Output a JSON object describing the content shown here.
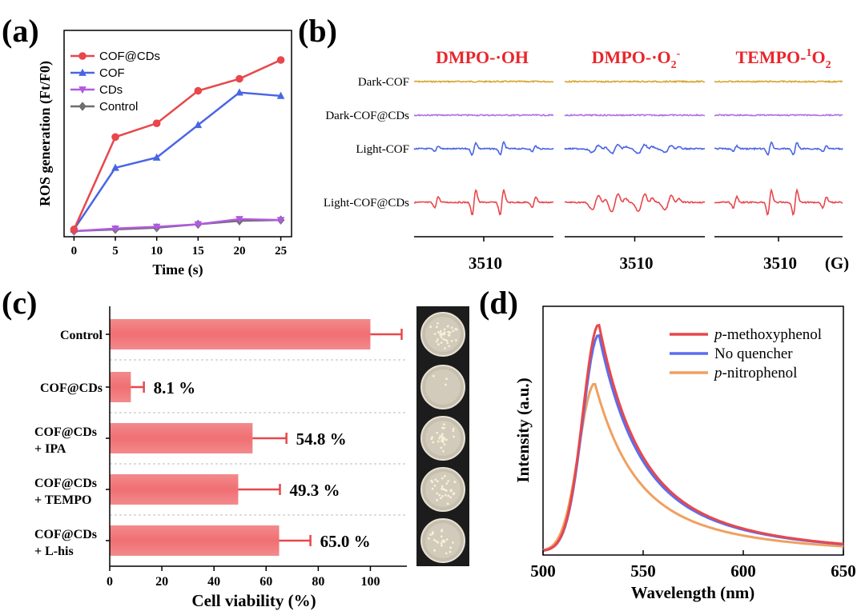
{
  "panel_labels": {
    "a": "(a)",
    "b": "(b)",
    "c": "(c)",
    "d": "(d)"
  },
  "chart_data": [
    {
      "panel": "a",
      "type": "line",
      "xlabel": "Time (s)",
      "ylabel": "ROS generation (Ft/F0)",
      "x": [
        0,
        5,
        10,
        15,
        20,
        25
      ],
      "xticks": [
        "0",
        "5",
        "10",
        "15",
        "20",
        "25"
      ],
      "xlim": [
        -1.2,
        26.3
      ],
      "ylim": [
        0,
        1
      ],
      "y_tick_labels_shown": false,
      "legend_position": "top-left",
      "series": [
        {
          "name": "COF@CDs",
          "marker": "circle",
          "color": "#e8474b",
          "values": [
            0.01,
            0.55,
            0.63,
            0.82,
            0.89,
            1.0
          ]
        },
        {
          "name": "COF",
          "marker": "triangle-up",
          "color": "#4a65e3",
          "values": [
            0.01,
            0.37,
            0.43,
            0.62,
            0.81,
            0.79
          ]
        },
        {
          "name": "CDs",
          "marker": "triangle-down",
          "color": "#b05ae0",
          "values": [
            0.0,
            0.015,
            0.025,
            0.04,
            0.07,
            0.065
          ]
        },
        {
          "name": "Control",
          "marker": "diamond",
          "color": "#6e6e6e",
          "values": [
            0.0,
            0.01,
            0.02,
            0.04,
            0.06,
            0.065
          ]
        }
      ]
    },
    {
      "panel": "b",
      "type": "line",
      "column_titles": [
        "DMPO-·OH",
        "DMPO-·O",
        "TEMPO-"
      ],
      "column_title_sup": [
        "",
        "-",
        "1"
      ],
      "column_title_sub": [
        "",
        "2",
        "2"
      ],
      "column_title_tail": [
        "",
        "",
        "O"
      ],
      "row_labels": [
        "Dark-COF",
        "Dark-COF@CDs",
        "Light-COF",
        "Light-COF@CDs"
      ],
      "row_colors": [
        "#d8a530",
        "#b070e0",
        "#4a65e3",
        "#e8474b"
      ],
      "x_tick_label": "3510",
      "x_unit": "(G)",
      "y_tick_labels_shown": false
    },
    {
      "panel": "c",
      "type": "bar",
      "orientation": "horizontal",
      "xlabel": "Cell viability (%)",
      "xlim": [
        0,
        114
      ],
      "xticks": [
        "0",
        "20",
        "40",
        "60",
        "80",
        "100"
      ],
      "bar_color": "#f06f73",
      "categories": [
        {
          "line1": "Control",
          "line2": ""
        },
        {
          "line1": "COF@CDs",
          "line2": ""
        },
        {
          "line1": "COF@CDs",
          "line2": "+ IPA"
        },
        {
          "line1": "COF@CDs",
          "line2": "+ TEMPO"
        },
        {
          "line1": "COF@CDs",
          "line2": "+ L-his"
        }
      ],
      "values": [
        100,
        8.1,
        54.8,
        49.3,
        65.0
      ],
      "errors": [
        12,
        5,
        13,
        16,
        12
      ],
      "data_labels": [
        "",
        "8.1 %",
        "54.8 %",
        "49.3 %",
        "65.0 %"
      ]
    },
    {
      "panel": "d",
      "type": "line",
      "xlabel": "Wavelength (nm)",
      "ylabel": "Intensity (a.u.)",
      "xlim": [
        500,
        650
      ],
      "xticks": [
        "500",
        "550",
        "600",
        "650"
      ],
      "ylim": [
        0,
        1
      ],
      "y_tick_labels_shown": false,
      "legend_position": "top-right",
      "series": [
        {
          "name_italic": "p",
          "name_rest": "-methoxyphenol",
          "color": "#e8474b",
          "peak": 1.0,
          "peak_x": 528
        },
        {
          "name_italic": "",
          "name_rest": "No quencher",
          "color": "#5a6ef0",
          "peak": 0.955,
          "peak_x": 528
        },
        {
          "name_italic": "p",
          "name_rest": "-nitrophenol",
          "color": "#f0a060",
          "peak": 0.74,
          "peak_x": 526
        }
      ]
    }
  ]
}
